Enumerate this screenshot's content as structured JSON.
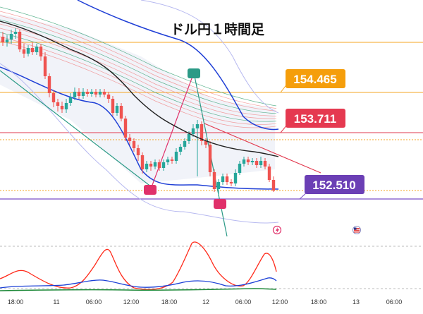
{
  "chart_data": {
    "type": "candlestick",
    "title": "ドル円１時間足",
    "price_labels": [
      {
        "value": 154.465,
        "text": "154.465",
        "color": "#f59e0b",
        "line_color": "#f5a623"
      },
      {
        "value": 153.711,
        "text": "153.711",
        "color": "#e53950",
        "line_color": "#e23a4f"
      },
      {
        "value": 152.51,
        "text": "152.510",
        "color": "#6b3fb5",
        "line_color": "#7b4fc8"
      }
    ],
    "x_ticks": [
      "18:00",
      "11",
      "06:00",
      "12:00",
      "18:00",
      "12",
      "06:00",
      "12:00",
      "18:00",
      "13",
      "06:00"
    ],
    "colors": {
      "up": "#26a69a",
      "down": "#ef5350",
      "ma": "#222222",
      "band_outer": "#1f3fd6",
      "band_inner": "#b7b9f0",
      "fan": "#f08080",
      "osc_red": "#ff2a1a",
      "osc_blue": "#1a3fd6",
      "osc_green": "#1f8a3a",
      "marker_green": "#2b9a86",
      "marker_pink": "#e0316a"
    }
  }
}
